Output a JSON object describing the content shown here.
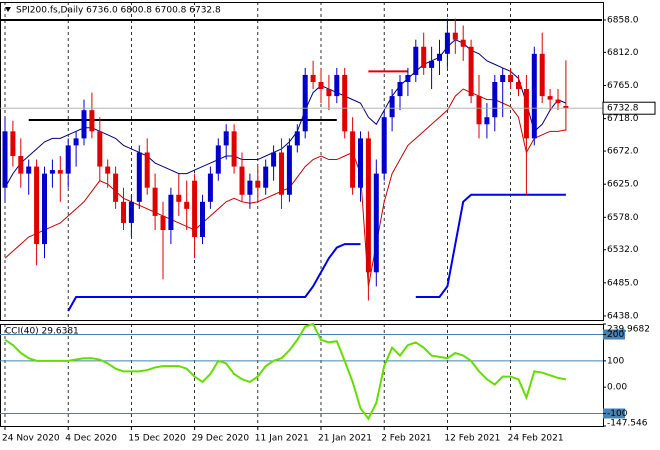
{
  "chart_data": [
    {
      "type": "candlestick",
      "title": "SPI200.fs,Daily 6736.0 6800.8 6700.8 6732.8",
      "categories": [
        "24 Nov 2020",
        null,
        null,
        null,
        null,
        null,
        null,
        null,
        "4 Dec 2020",
        null,
        null,
        null,
        null,
        null,
        null,
        null,
        "15 Dec 2020",
        null,
        null,
        null,
        null,
        null,
        null,
        null,
        "29 Dec 2020",
        null,
        null,
        null,
        null,
        null,
        null,
        null,
        "11 Jan 2021",
        null,
        null,
        null,
        null,
        null,
        null,
        null,
        "21 Jan 2021",
        null,
        null,
        null,
        null,
        null,
        null,
        null,
        "2 Feb 2021",
        null,
        null,
        null,
        null,
        null,
        null,
        null,
        "12 Feb 2021",
        null,
        null,
        null,
        null,
        null,
        null,
        null,
        "24 Feb 2021",
        null,
        null,
        null,
        null,
        null,
        null,
        null
      ],
      "open": [
        6620,
        6700,
        6665,
        6640,
        6650,
        6540,
        6640,
        6645,
        6640,
        6680,
        6690,
        6730,
        6700,
        6650,
        6640,
        6600,
        6570,
        6600,
        6670,
        6620,
        6580,
        6560,
        6610,
        6600,
        6630,
        6550,
        6600,
        6640,
        6680,
        6700,
        6650,
        6610,
        6630,
        6620,
        6650,
        6670,
        6610,
        6680,
        6700,
        6780,
        6770,
        6760,
        6750,
        6780,
        6700,
        6620,
        6690,
        6500,
        6640,
        6720,
        6750,
        6770,
        6780,
        6820,
        6790,
        6800,
        6810,
        6840,
        6830,
        6820,
        6750,
        6710,
        6720,
        6770,
        6780,
        6770,
        6760,
        6690,
        6810,
        6750,
        6745,
        6736.0
      ],
      "high": [
        6720,
        6715,
        6690,
        6660,
        6660,
        6650,
        6660,
        6665,
        6690,
        6700,
        6745,
        6755,
        6720,
        6660,
        6650,
        6620,
        6610,
        6680,
        6690,
        6640,
        6600,
        6620,
        6640,
        6630,
        6640,
        6610,
        6650,
        6690,
        6710,
        6710,
        6670,
        6640,
        6650,
        6660,
        6680,
        6690,
        6690,
        6710,
        6790,
        6800,
        6790,
        6780,
        6790,
        6790,
        6720,
        6700,
        6700,
        6660,
        6730,
        6760,
        6780,
        6790,
        6830,
        6840,
        6820,
        6830,
        6860,
        6860,
        6850,
        6830,
        6780,
        6740,
        6780,
        6790,
        6790,
        6780,
        6780,
        6820,
        6840,
        6760,
        6760,
        6800.8
      ],
      "low": [
        6600,
        6650,
        6620,
        6610,
        6510,
        6520,
        6620,
        6600,
        6620,
        6650,
        6680,
        6690,
        6630,
        6620,
        6590,
        6560,
        6550,
        6590,
        6610,
        6560,
        6490,
        6540,
        6580,
        6560,
        6520,
        6540,
        6590,
        6630,
        6660,
        6640,
        6600,
        6590,
        6600,
        6610,
        6630,
        6590,
        6600,
        6670,
        6690,
        6760,
        6740,
        6730,
        6740,
        6690,
        6610,
        6600,
        6460,
        6480,
        6630,
        6700,
        6730,
        6750,
        6770,
        6780,
        6760,
        6780,
        6790,
        6810,
        6800,
        6740,
        6690,
        6690,
        6700,
        6720,
        6760,
        6750,
        6610,
        6680,
        6740,
        6730,
        6730,
        6700.8
      ],
      "close": [
        6700,
        6665,
        6640,
        6650,
        6540,
        6640,
        6645,
        6640,
        6680,
        6690,
        6730,
        6700,
        6650,
        6640,
        6600,
        6570,
        6600,
        6670,
        6620,
        6580,
        6560,
        6610,
        6600,
        6590,
        6550,
        6600,
        6640,
        6680,
        6700,
        6650,
        6610,
        6630,
        6620,
        6650,
        6670,
        6610,
        6680,
        6700,
        6780,
        6770,
        6760,
        6750,
        6780,
        6700,
        6620,
        6690,
        6500,
        6640,
        6720,
        6750,
        6770,
        6780,
        6820,
        6790,
        6800,
        6810,
        6840,
        6830,
        6820,
        6750,
        6710,
        6720,
        6770,
        6780,
        6770,
        6760,
        6690,
        6810,
        6750,
        6745,
        6740,
        6732.8
      ],
      "up_color": "#0000cc",
      "down_color": "#e00000",
      "series": [
        {
          "color": "#000080",
          "values": [
            6620,
            6640,
            6655,
            6665,
            6675,
            6685,
            6690,
            6690,
            6695,
            6700,
            6705,
            6705,
            6700,
            6695,
            6690,
            6680,
            6675,
            6670,
            6665,
            6655,
            6650,
            6645,
            6640,
            6640,
            6645,
            6650,
            6655,
            6660,
            6665,
            6665,
            6660,
            6660,
            6660,
            6665,
            6670,
            6675,
            6685,
            6700,
            6730,
            6755,
            6765,
            6760,
            6755,
            6750,
            6745,
            6740,
            6720,
            6710,
            6730,
            6750,
            6765,
            6775,
            6785,
            6795,
            6800,
            6805,
            6820,
            6830,
            6825,
            6815,
            6810,
            6800,
            6795,
            6790,
            6785,
            6775,
            6740,
            6700,
            6710,
            6730,
            6745,
            6740
          ]
        },
        {
          "color": "#cc0000",
          "values": [
            6520,
            6530,
            6540,
            6550,
            6555,
            6560,
            6565,
            6570,
            6580,
            6590,
            6600,
            6615,
            6630,
            6625,
            6615,
            6605,
            6600,
            6595,
            6590,
            6585,
            6580,
            6575,
            6570,
            6565,
            6560,
            6570,
            6580,
            6590,
            6600,
            6605,
            6600,
            6598,
            6600,
            6605,
            6610,
            6615,
            6620,
            6635,
            6650,
            6660,
            6665,
            6660,
            6660,
            6665,
            6670,
            6640,
            6480,
            6540,
            6600,
            6640,
            6660,
            6680,
            6690,
            6700,
            6710,
            6720,
            6730,
            6750,
            6760,
            6755,
            6750,
            6745,
            6745,
            6740,
            6735,
            6720,
            6670,
            6690,
            6695,
            6700,
            6700,
            6702
          ]
        },
        {
          "color": "#0000ee",
          "values": [
            null,
            null,
            null,
            null,
            null,
            null,
            null,
            null,
            6445,
            6465,
            6465,
            6465,
            6465,
            6465,
            6465,
            6465,
            6465,
            6465,
            6465,
            6465,
            6465,
            6465,
            6465,
            6465,
            6465,
            6465,
            6465,
            6465,
            6465,
            6465,
            6465,
            6465,
            6465,
            6465,
            6465,
            6465,
            6465,
            6465,
            6465,
            6480,
            6500,
            6520,
            6535,
            6540,
            6540,
            6540,
            null,
            null,
            null,
            null,
            null,
            null,
            6465,
            6465,
            6465,
            6465,
            6480,
            6540,
            6600,
            6610,
            6610,
            6610,
            6610,
            6610,
            6610,
            6610,
            6610,
            6610,
            6610,
            6610,
            6610,
            6610
          ]
        }
      ],
      "levels": [
        {
          "value": 6858,
          "color": "#000000"
        },
        {
          "value": 6716,
          "color": "#000000"
        },
        {
          "value": 6785,
          "color": "#e00000"
        }
      ],
      "ylim": [
        6432.3,
        6883.5
      ],
      "yticks": [
        {
          "value": 6858,
          "label": "6858.0"
        },
        {
          "value": 6812,
          "label": "6812.0"
        },
        {
          "value": 6765,
          "label": "6765.0"
        },
        {
          "value": 6718,
          "label": "6718.0"
        },
        {
          "value": 6672,
          "label": "6672.0"
        },
        {
          "value": 6625,
          "label": "6625.0"
        },
        {
          "value": 6578,
          "label": "6578.0"
        },
        {
          "value": 6532,
          "label": "6532.0"
        },
        {
          "value": 6485,
          "label": "6485.0"
        },
        {
          "value": 6438,
          "label": "6438.0"
        }
      ],
      "grid": true
    },
    {
      "type": "line",
      "title": "CCI(40) 29.6381",
      "color": "#66dd00",
      "values": [
        180,
        160,
        130,
        110,
        100,
        100,
        100,
        100,
        100,
        105,
        110,
        110,
        105,
        90,
        70,
        60,
        60,
        60,
        65,
        75,
        80,
        80,
        80,
        70,
        40,
        20,
        50,
        100,
        90,
        50,
        30,
        20,
        40,
        80,
        100,
        110,
        140,
        180,
        230,
        240,
        180,
        170,
        175,
        100,
        20,
        -80,
        -120,
        -60,
        80,
        150,
        120,
        160,
        170,
        150,
        120,
        115,
        110,
        130,
        120,
        100,
        60,
        30,
        10,
        40,
        40,
        30,
        -40,
        60,
        55,
        45,
        35,
        29.6381
      ],
      "ylim": [
        -147.546,
        239.9682
      ],
      "yticks": [
        239.9682,
        200,
        100,
        {
          "value": 0,
          "label": "0.00"
        },
        -100,
        -147.546
      ]
    }
  ]
}
